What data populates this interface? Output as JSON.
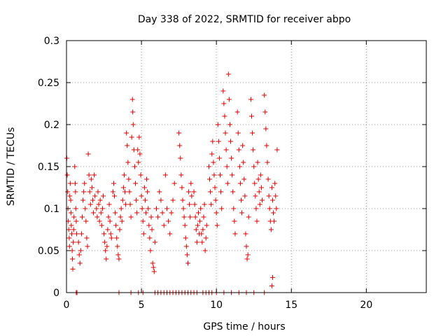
{
  "chart_data": {
    "type": "scatter",
    "title": "Day 338 of 2022, SRMTID for receiver abpo",
    "xlabel": "GPS time / hours",
    "ylabel": "SRMTID / TECUs",
    "xlim": [
      0,
      24
    ],
    "ylim": [
      0,
      0.3
    ],
    "x_ticks": [
      0,
      5,
      10,
      15,
      20
    ],
    "x_tick_labels": [
      "0",
      "5",
      "10",
      "15",
      "20"
    ],
    "y_ticks": [
      0,
      0.05,
      0.1,
      0.15,
      0.2,
      0.25,
      0.3
    ],
    "y_tick_labels": [
      "0",
      "0.05",
      "0.1",
      "0.15",
      "0.2",
      "0.25",
      "0.3"
    ],
    "grid": true,
    "marker": "+",
    "marker_color": "#dd0000",
    "series": [
      {
        "name": "SRMTID",
        "points": [
          [
            0.02,
            0.16
          ],
          [
            0.05,
            0.14
          ],
          [
            0.08,
            0.12
          ],
          [
            0.1,
            0.1
          ],
          [
            0.12,
            0.085
          ],
          [
            0.15,
            0.075
          ],
          [
            0.18,
            0.065
          ],
          [
            0.2,
            0.055
          ],
          [
            0.22,
            0.115
          ],
          [
            0.25,
            0.13
          ],
          [
            0.28,
            0.11
          ],
          [
            0.3,
            0.095
          ],
          [
            0.32,
            0.08
          ],
          [
            0.35,
            0.07
          ],
          [
            0.38,
            0.05
          ],
          [
            0.4,
            0.04
          ],
          [
            0.42,
            0.028
          ],
          [
            0.45,
            0.06
          ],
          [
            0.48,
            0.075
          ],
          [
            0.5,
            0.09
          ],
          [
            0.55,
            0.15
          ],
          [
            0.58,
            0.13
          ],
          [
            0.6,
            0.12
          ],
          [
            0.62,
            0.1
          ],
          [
            0.65,
            0.085
          ],
          [
            0.68,
            0.07
          ],
          [
            0.8,
            0.06
          ],
          [
            0.85,
            0.045
          ],
          [
            0.9,
            0.035
          ],
          [
            0.95,
            0.05
          ],
          [
            1.0,
            0.07
          ],
          [
            1.05,
            0.09
          ],
          [
            1.1,
            0.11
          ],
          [
            1.15,
            0.12
          ],
          [
            1.2,
            0.13
          ],
          [
            1.25,
            0.1
          ],
          [
            1.3,
            0.085
          ],
          [
            1.35,
            0.065
          ],
          [
            1.4,
            0.055
          ],
          [
            1.45,
            0.165
          ],
          [
            1.5,
            0.14
          ],
          [
            1.55,
            0.12
          ],
          [
            1.6,
            0.105
          ],
          [
            1.65,
            0.135
          ],
          [
            1.7,
            0.125
          ],
          [
            1.75,
            0.11
          ],
          [
            1.8,
            0.095
          ],
          [
            1.85,
            0.14
          ],
          [
            1.9,
            0.115
          ],
          [
            2.0,
            0.1
          ],
          [
            2.05,
            0.09
          ],
          [
            2.1,
            0.12
          ],
          [
            2.15,
            0.105
          ],
          [
            2.2,
            0.085
          ],
          [
            2.25,
            0.11
          ],
          [
            2.3,
            0.095
          ],
          [
            2.35,
            0.08
          ],
          [
            2.4,
            0.1
          ],
          [
            2.45,
            0.115
          ],
          [
            2.5,
            0.07
          ],
          [
            2.55,
            0.06
          ],
          [
            2.6,
            0.05
          ],
          [
            2.65,
            0.04
          ],
          [
            2.7,
            0.055
          ],
          [
            2.75,
            0.075
          ],
          [
            2.8,
            0.09
          ],
          [
            2.85,
            0.105
          ],
          [
            2.9,
            0.085
          ],
          [
            2.95,
            0.07
          ],
          [
            3.0,
            0.065
          ],
          [
            3.1,
            0.12
          ],
          [
            3.15,
            0.13
          ],
          [
            3.2,
            0.115
          ],
          [
            3.25,
            0.095
          ],
          [
            3.3,
            0.08
          ],
          [
            3.35,
            0.065
          ],
          [
            3.4,
            0.055
          ],
          [
            3.45,
            0.045
          ],
          [
            3.5,
            0.04
          ],
          [
            3.55,
            0.075
          ],
          [
            3.6,
            0.09
          ],
          [
            3.65,
            0.1
          ],
          [
            3.7,
            0.085
          ],
          [
            3.75,
            0.11
          ],
          [
            3.8,
            0.125
          ],
          [
            3.85,
            0.14
          ],
          [
            3.9,
            0.12
          ],
          [
            3.95,
            0.105
          ],
          [
            4.0,
            0.19
          ],
          [
            4.05,
            0.175
          ],
          [
            4.1,
            0.155
          ],
          [
            4.15,
            0.135
          ],
          [
            4.2,
            0.12
          ],
          [
            4.25,
            0.105
          ],
          [
            4.3,
            0.09
          ],
          [
            4.35,
            0.185
          ],
          [
            4.4,
            0.23
          ],
          [
            4.42,
            0.215
          ],
          [
            4.45,
            0.2
          ],
          [
            4.5,
            0.17
          ],
          [
            4.55,
            0.15
          ],
          [
            4.6,
            0.13
          ],
          [
            4.65,
            0.11
          ],
          [
            4.7,
            0.095
          ],
          [
            4.75,
            0.17
          ],
          [
            4.8,
            0.155
          ],
          [
            4.85,
            0.185
          ],
          [
            4.9,
            0.165
          ],
          [
            4.95,
            0.14
          ],
          [
            5.0,
            0.115
          ],
          [
            5.05,
            0.1
          ],
          [
            5.1,
            0.085
          ],
          [
            5.15,
            0.07
          ],
          [
            5.2,
            0.125
          ],
          [
            5.25,
            0.11
          ],
          [
            5.3,
            0.095
          ],
          [
            5.35,
            0.135
          ],
          [
            5.4,
            0.12
          ],
          [
            5.45,
            0.1
          ],
          [
            5.5,
            0.08
          ],
          [
            5.55,
            0.065
          ],
          [
            5.6,
            0.05
          ],
          [
            5.65,
            0.09
          ],
          [
            5.7,
            0.075
          ],
          [
            5.75,
            0.035
          ],
          [
            5.8,
            0.03
          ],
          [
            5.85,
            0.025
          ],
          [
            5.9,
            0.06
          ],
          [
            6.0,
            0.1
          ],
          [
            6.1,
            0.09
          ],
          [
            6.2,
            0.12
          ],
          [
            6.3,
            0.11
          ],
          [
            6.4,
            0.095
          ],
          [
            6.5,
            0.08
          ],
          [
            6.6,
            0.14
          ],
          [
            6.7,
            0.1
          ],
          [
            6.8,
            0.085
          ],
          [
            6.9,
            0.07
          ],
          [
            7.0,
            0.095
          ],
          [
            7.1,
            0.11
          ],
          [
            7.2,
            0.13
          ],
          [
            7.5,
            0.19
          ],
          [
            7.55,
            0.175
          ],
          [
            7.6,
            0.16
          ],
          [
            7.65,
            0.14
          ],
          [
            7.7,
            0.125
          ],
          [
            7.75,
            0.11
          ],
          [
            7.8,
            0.1
          ],
          [
            7.85,
            0.09
          ],
          [
            7.9,
            0.08
          ],
          [
            7.95,
            0.065
          ],
          [
            8.0,
            0.055
          ],
          [
            8.05,
            0.045
          ],
          [
            8.1,
            0.035
          ],
          [
            8.15,
            0.12
          ],
          [
            8.2,
            0.105
          ],
          [
            8.25,
            0.09
          ],
          [
            8.3,
            0.13
          ],
          [
            8.35,
            0.115
          ],
          [
            8.5,
            0.12
          ],
          [
            8.55,
            0.105
          ],
          [
            8.6,
            0.09
          ],
          [
            8.65,
            0.075
          ],
          [
            8.7,
            0.06
          ],
          [
            8.75,
            0.08
          ],
          [
            8.8,
            0.095
          ],
          [
            8.85,
            0.07
          ],
          [
            8.9,
            0.085
          ],
          [
            8.95,
            0.1
          ],
          [
            9.0,
            0.07
          ],
          [
            9.05,
            0.06
          ],
          [
            9.1,
            0.075
          ],
          [
            9.15,
            0.09
          ],
          [
            9.2,
            0.105
          ],
          [
            9.25,
            0.05
          ],
          [
            9.3,
            0.065
          ],
          [
            9.35,
            0.08
          ],
          [
            9.5,
            0.15
          ],
          [
            9.55,
            0.135
          ],
          [
            9.6,
            0.12
          ],
          [
            9.65,
            0.105
          ],
          [
            9.7,
            0.165
          ],
          [
            9.75,
            0.18
          ],
          [
            9.8,
            0.155
          ],
          [
            9.85,
            0.14
          ],
          [
            9.9,
            0.125
          ],
          [
            9.95,
            0.11
          ],
          [
            10.0,
            0.095
          ],
          [
            10.05,
            0.08
          ],
          [
            10.1,
            0.2
          ],
          [
            10.15,
            0.18
          ],
          [
            10.2,
            0.16
          ],
          [
            10.25,
            0.14
          ],
          [
            10.3,
            0.12
          ],
          [
            10.35,
            0.1
          ],
          [
            10.45,
            0.24
          ],
          [
            10.5,
            0.225
          ],
          [
            10.55,
            0.21
          ],
          [
            10.6,
            0.19
          ],
          [
            10.65,
            0.17
          ],
          [
            10.7,
            0.15
          ],
          [
            10.75,
            0.13
          ],
          [
            10.8,
            0.26
          ],
          [
            10.85,
            0.23
          ],
          [
            10.9,
            0.2
          ],
          [
            10.95,
            0.18
          ],
          [
            11.0,
            0.16
          ],
          [
            11.05,
            0.14
          ],
          [
            11.1,
            0.12
          ],
          [
            11.15,
            0.1
          ],
          [
            11.2,
            0.085
          ],
          [
            11.25,
            0.07
          ],
          [
            11.4,
            0.215
          ],
          [
            11.45,
            0.19
          ],
          [
            11.5,
            0.17
          ],
          [
            11.55,
            0.15
          ],
          [
            11.6,
            0.13
          ],
          [
            11.65,
            0.11
          ],
          [
            11.7,
            0.095
          ],
          [
            11.75,
            0.175
          ],
          [
            11.8,
            0.155
          ],
          [
            11.85,
            0.135
          ],
          [
            11.9,
            0.115
          ],
          [
            11.95,
            0.07
          ],
          [
            12.0,
            0.055
          ],
          [
            12.05,
            0.04
          ],
          [
            12.1,
            0.045
          ],
          [
            12.15,
            0.09
          ],
          [
            12.3,
            0.23
          ],
          [
            12.35,
            0.21
          ],
          [
            12.4,
            0.19
          ],
          [
            12.45,
            0.17
          ],
          [
            12.5,
            0.15
          ],
          [
            12.55,
            0.13
          ],
          [
            12.6,
            0.115
          ],
          [
            12.65,
            0.1
          ],
          [
            12.7,
            0.085
          ],
          [
            12.75,
            0.155
          ],
          [
            12.8,
            0.135
          ],
          [
            12.85,
            0.12
          ],
          [
            12.9,
            0.105
          ],
          [
            12.95,
            0.14
          ],
          [
            13.0,
            0.125
          ],
          [
            13.05,
            0.11
          ],
          [
            13.2,
            0.235
          ],
          [
            13.25,
            0.215
          ],
          [
            13.3,
            0.195
          ],
          [
            13.35,
            0.175
          ],
          [
            13.4,
            0.155
          ],
          [
            13.45,
            0.135
          ],
          [
            13.5,
            0.115
          ],
          [
            13.55,
            0.1
          ],
          [
            13.6,
            0.085
          ],
          [
            13.65,
            0.075
          ],
          [
            13.7,
            0.125
          ],
          [
            13.75,
            0.11
          ],
          [
            13.8,
            0.095
          ],
          [
            13.85,
            0.085
          ],
          [
            13.9,
            0.13
          ],
          [
            13.95,
            0.115
          ],
          [
            14.0,
            0.1
          ],
          [
            14.05,
            0.17
          ],
          [
            13.75,
            0.018
          ],
          [
            13.7,
            0.008
          ],
          [
            0.65,
            0
          ],
          [
            0.7,
            0
          ],
          [
            3.5,
            0
          ],
          [
            4.3,
            0
          ],
          [
            4.8,
            0
          ],
          [
            5.1,
            0
          ],
          [
            5.9,
            0
          ],
          [
            6.1,
            0
          ],
          [
            6.3,
            0
          ],
          [
            6.5,
            0
          ],
          [
            6.7,
            0
          ],
          [
            6.9,
            0
          ],
          [
            7.1,
            0
          ],
          [
            7.3,
            0
          ],
          [
            7.5,
            0
          ],
          [
            7.7,
            0
          ],
          [
            7.9,
            0
          ],
          [
            8.1,
            0
          ],
          [
            8.3,
            0
          ],
          [
            8.5,
            0
          ],
          [
            8.7,
            0
          ],
          [
            9.1,
            0
          ],
          [
            9.3,
            0
          ],
          [
            9.5,
            0
          ],
          [
            9.7,
            0
          ],
          [
            10.0,
            0
          ],
          [
            10.5,
            0
          ],
          [
            11.0,
            0
          ],
          [
            11.5,
            0
          ],
          [
            12.0,
            0
          ],
          [
            12.5,
            0
          ],
          [
            13.2,
            0
          ]
        ]
      }
    ]
  }
}
